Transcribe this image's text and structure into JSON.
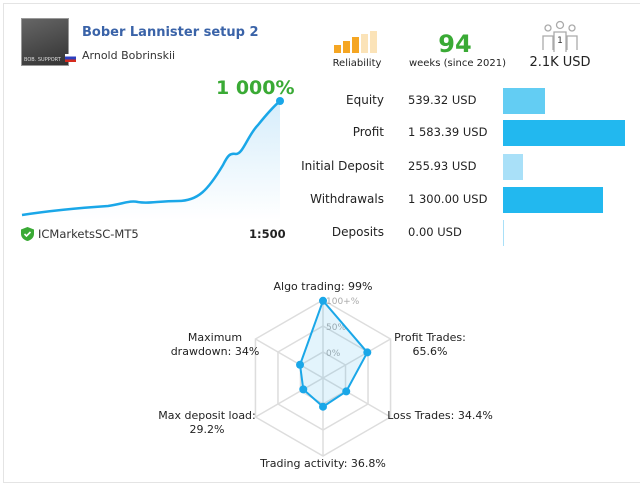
{
  "header": {
    "title": "Bober Lannister setup 2",
    "author": "Arnold Bobrinskii",
    "avatar_text": "BOB. SUPPORT"
  },
  "reliability": {
    "label": "Reliability",
    "level": 3,
    "max": 5,
    "color": "#f5a623"
  },
  "weeks": {
    "value": "94",
    "label": "weeks (since 2021)"
  },
  "subscribers": {
    "count": "1",
    "amount": "2.1K USD"
  },
  "growth": {
    "value": "1 000%",
    "broker": "ICMarketsSC-MT5",
    "leverage": "1:500"
  },
  "stats": [
    {
      "label": "Equity",
      "value": "539.32 USD",
      "amount": 539.32,
      "color": "#63cdf3"
    },
    {
      "label": "Profit",
      "value": "1 583.39 USD",
      "amount": 1583.39,
      "color": "#22b8ef"
    },
    {
      "label": "Initial Deposit",
      "value": "255.93 USD",
      "amount": 255.93,
      "color": "#a9e0f8"
    },
    {
      "label": "Withdrawals",
      "value": "1 300.00 USD",
      "amount": 1300,
      "color": "#22b8ef"
    },
    {
      "label": "Deposits",
      "value": "0.00 USD",
      "amount": 0,
      "color": "#a9e0f8"
    }
  ],
  "radar": {
    "ring_labels": [
      "100+%",
      "50%",
      "0%"
    ],
    "axes": [
      {
        "label": "Algo trading: 99%",
        "value": 99
      },
      {
        "label": "Profit Trades: 65.6%",
        "value": 65.6
      },
      {
        "label": "Loss Trades: 34.4%",
        "value": 34.4
      },
      {
        "label": "Trading activity: 36.8%",
        "value": 36.8
      },
      {
        "label": "Max deposit load: 29.2%",
        "value": 29.2
      },
      {
        "label": "Maximum drawdown: 34%",
        "value": 34
      }
    ],
    "color": "#1aa7e8"
  }
}
